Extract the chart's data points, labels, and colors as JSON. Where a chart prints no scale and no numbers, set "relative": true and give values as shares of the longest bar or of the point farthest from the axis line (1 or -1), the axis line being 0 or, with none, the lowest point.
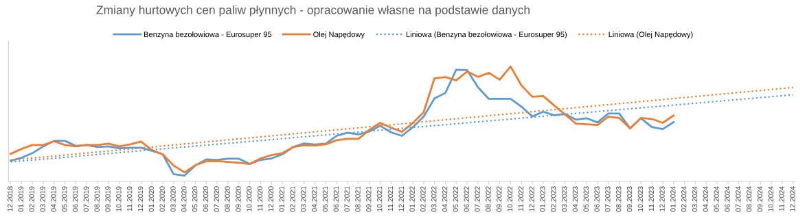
{
  "chart_data": {
    "type": "line",
    "title": "Zmiany hurtowych cen paliw płynnych - opracowanie własne na podstawie danych",
    "categories": [
      "12.2018",
      "01.2019",
      "02.2019",
      "03.2019",
      "04.2019",
      "05.2019",
      "06.2019",
      "07.2019",
      "08.2019",
      "09.2019",
      "10.2019",
      "11.2019",
      "12.2019",
      "01.2020",
      "02.2020",
      "03.2020",
      "04.2020",
      "05.2020",
      "06.2020",
      "07.2020",
      "08.2020",
      "09.2020",
      "10.2020",
      "11.2020",
      "12.2020",
      "01.2021",
      "02.2021",
      "03.2021",
      "04.2021",
      "05.2021",
      "06.2021",
      "07.2021",
      "08.2021",
      "09.2021",
      "10.2021",
      "11.2021",
      "12.2021",
      "01.2022",
      "02.2022",
      "03.2022",
      "04.2022",
      "05.2022",
      "06.2022",
      "07.2022",
      "08.2022",
      "09.2022",
      "10.2022",
      "11.2022",
      "12.2022",
      "01.2023",
      "02.2023",
      "03.2023",
      "04.2023",
      "05.2023",
      "06.2023",
      "07.2023",
      "08.2023",
      "09.2023",
      "10.2023",
      "11.2023",
      "12.2023",
      "01.2024",
      "02.2024",
      "03.2024",
      "04.2024",
      "05.2024",
      "06.2024",
      "07.2024",
      "08.2024",
      "09.2024",
      "10.2024",
      "11.2024",
      "12.2024"
    ],
    "relative": true,
    "grid": false,
    "legend": "top",
    "marker": "none",
    "series": [
      {
        "name": "Benzyna bezołowiowa - Eurosuper 95",
        "color": "#5b9bd5",
        "line_style": "solid",
        "values": [
          0.179,
          0.205,
          0.245,
          0.304,
          0.352,
          0.352,
          0.308,
          0.316,
          0.298,
          0.304,
          0.288,
          0.292,
          0.292,
          0.266,
          0.235,
          0.062,
          0.05,
          0.139,
          0.191,
          0.187,
          0.197,
          0.197,
          0.151,
          0.187,
          0.199,
          0.235,
          0.298,
          0.33,
          0.32,
          0.328,
          0.396,
          0.423,
          0.408,
          0.433,
          0.483,
          0.427,
          0.396,
          0.471,
          0.563,
          0.722,
          0.769,
          0.972,
          0.968,
          0.819,
          0.718,
          0.718,
          0.718,
          0.65,
          0.565,
          0.606,
          0.575,
          0.586,
          0.537,
          0.549,
          0.513,
          0.59,
          0.59,
          0.461,
          0.549,
          0.473,
          0.455,
          0.515,
          null,
          null,
          null,
          null,
          null,
          null,
          null,
          null,
          null,
          null,
          null
        ]
      },
      {
        "name": "Olej Napędowy",
        "color": "#ed7d31",
        "line_style": "solid",
        "values": [
          0.239,
          0.282,
          0.316,
          0.316,
          0.348,
          0.316,
          0.304,
          0.316,
          0.316,
          0.328,
          0.304,
          0.322,
          0.346,
          0.272,
          0.235,
          0.137,
          0.078,
          0.141,
          0.175,
          0.177,
          0.169,
          0.161,
          0.151,
          0.199,
          0.229,
          0.245,
          0.298,
          0.314,
          0.312,
          0.322,
          0.358,
          0.37,
          0.37,
          0.447,
          0.509,
          0.467,
          0.431,
          0.507,
          0.6,
          0.897,
          0.907,
          0.879,
          0.956,
          0.909,
          0.944,
          0.885,
          1.0,
          0.835,
          0.736,
          0.742,
          0.662,
          0.583,
          0.503,
          0.497,
          0.491,
          0.563,
          0.551,
          0.461,
          0.551,
          0.543,
          0.509,
          0.573,
          null,
          null,
          null,
          null,
          null,
          null,
          null,
          null,
          null,
          null,
          null
        ]
      },
      {
        "name": "Liniowa (Benzyna bezołowiowa - Eurosuper 95)",
        "color": "#5b9bd5",
        "line_style": "dotted",
        "x": [
          "12.2018",
          "12.2024"
        ],
        "values": [
          0.169,
          0.753
        ]
      },
      {
        "name": "Liniowa (Olej Napędowy)",
        "color": "#ed7d31",
        "line_style": "dotted",
        "x": [
          "12.2018",
          "12.2024"
        ],
        "values": [
          0.185,
          0.817
        ]
      }
    ]
  }
}
